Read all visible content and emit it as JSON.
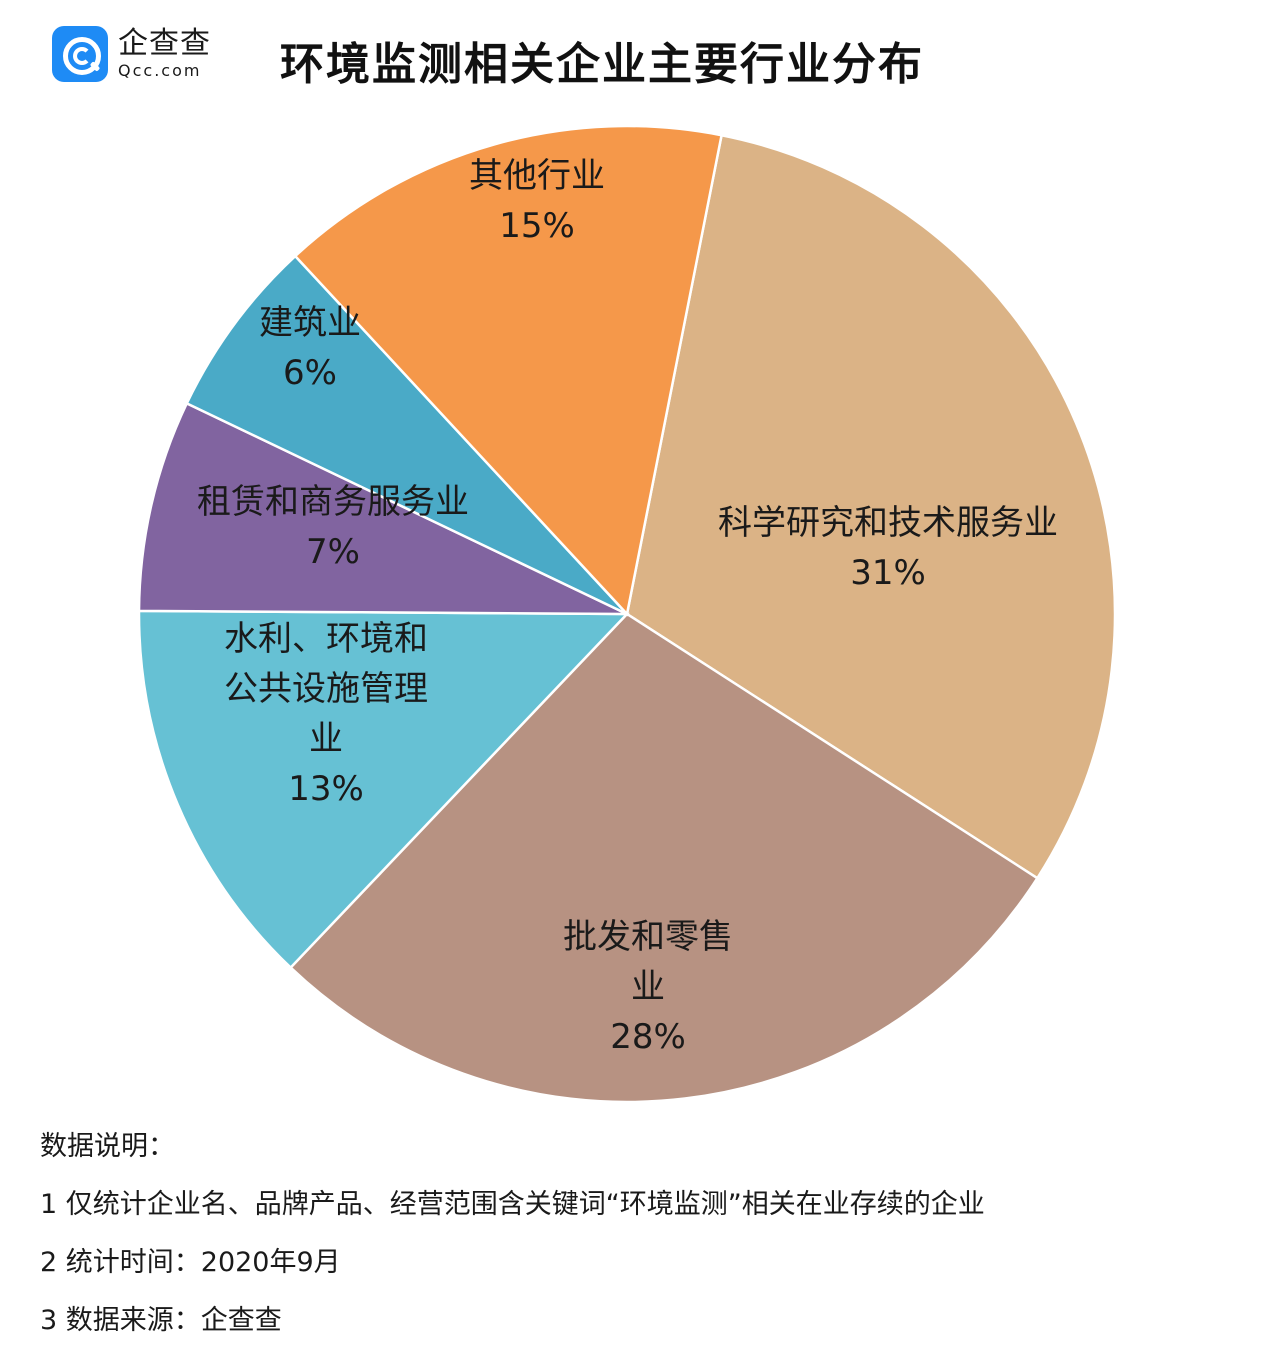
{
  "logo": {
    "cn": "企查查",
    "en": "Qcc.com",
    "icon": "qcc-logo-icon",
    "brand_color": "#1e8bf5"
  },
  "title": "环境监测相关企业主要行业分布",
  "chart_data": {
    "type": "pie",
    "title": "环境监测相关企业主要行业分布",
    "start": "top, clockwise",
    "slices": [
      {
        "label": [
          "科学研究和技术服务业"
        ],
        "value": 31,
        "display": "31%",
        "color": "#dbb386"
      },
      {
        "label": [
          "批发和零售",
          "业"
        ],
        "value": 28,
        "display": "28%",
        "color": "#b79282"
      },
      {
        "label": [
          "水利、环境和",
          "公共设施管理",
          "业"
        ],
        "value": 13,
        "display": "13%",
        "color": "#66c1d4"
      },
      {
        "label": [
          "租赁和商务服务业"
        ],
        "value": 7,
        "display": "7%",
        "color": "#8164a0"
      },
      {
        "label": [
          "建筑业"
        ],
        "value": 6,
        "display": "6%",
        "color": "#4aaac7"
      },
      {
        "label": [
          "其他行业"
        ],
        "value": 15,
        "display": "15%",
        "color": "#f5984a"
      }
    ]
  },
  "notes": {
    "heading": "数据说明：",
    "items": [
      "1 仅统计企业名、品牌产品、经营范围含关键词“环境监测”相关在业存续的企业",
      "2 统计时间：2020年9月",
      "3 数据来源：企查查"
    ]
  }
}
